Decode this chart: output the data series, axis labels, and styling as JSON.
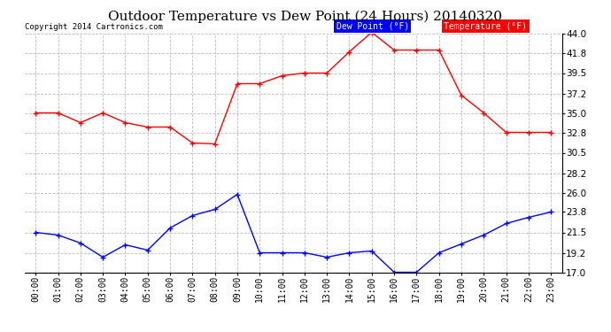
{
  "title": "Outdoor Temperature vs Dew Point (24 Hours) 20140320",
  "copyright": "Copyright 2014 Cartronics.com",
  "hours": [
    "00:00",
    "01:00",
    "02:00",
    "03:00",
    "04:00",
    "05:00",
    "06:00",
    "07:00",
    "08:00",
    "09:00",
    "10:00",
    "11:00",
    "12:00",
    "13:00",
    "14:00",
    "15:00",
    "16:00",
    "17:00",
    "18:00",
    "19:00",
    "20:00",
    "21:00",
    "22:00",
    "23:00"
  ],
  "temperature": [
    35.0,
    35.0,
    33.9,
    35.0,
    33.9,
    33.4,
    33.4,
    31.6,
    31.5,
    38.3,
    38.3,
    39.2,
    39.5,
    39.5,
    41.9,
    44.1,
    42.1,
    42.1,
    42.1,
    37.0,
    35.0,
    32.8,
    32.8,
    32.8
  ],
  "dew_point": [
    21.5,
    21.2,
    20.3,
    18.7,
    20.1,
    19.5,
    22.0,
    23.4,
    24.1,
    25.8,
    19.2,
    19.2,
    19.2,
    18.7,
    19.2,
    19.4,
    17.0,
    17.0,
    19.2,
    20.2,
    21.2,
    22.5,
    23.2,
    23.8
  ],
  "temp_color": "#ff0000",
  "dew_color": "#0000ff",
  "bg_color": "#ffffff",
  "grid_color": "#bbbbbb",
  "ylim_min": 17.0,
  "ylim_max": 44.0,
  "yticks": [
    17.0,
    19.2,
    21.5,
    23.8,
    26.0,
    28.2,
    30.5,
    32.8,
    35.0,
    37.2,
    39.5,
    41.8,
    44.0
  ],
  "title_fontsize": 11,
  "legend_dew_label": "Dew Point (°F)",
  "legend_temp_label": "Temperature (°F)"
}
